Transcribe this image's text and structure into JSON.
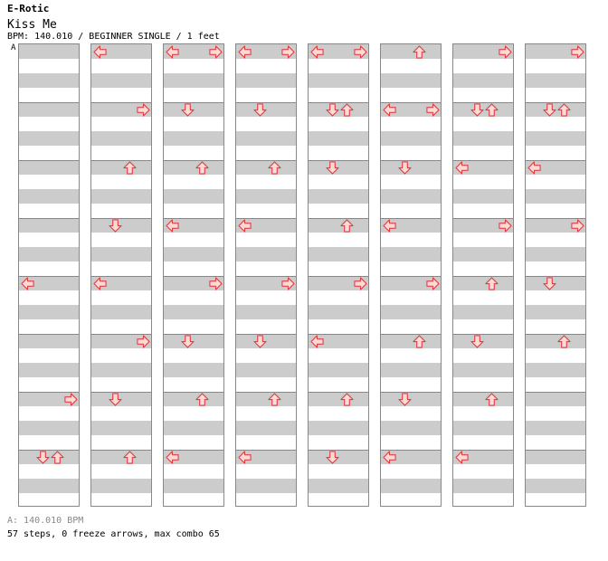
{
  "header": {
    "artist": "E-Rotic",
    "title": "Kiss Me",
    "info": "BPM: 140.010 / BEGINNER SINGLE / 1 feet",
    "marker": "A"
  },
  "footer": {
    "bpm_note": "A: 140.010 BPM",
    "stats": "57 steps, 0 freeze arrows, max combo 65"
  },
  "colors": {
    "arrow_fill": "#ffd8d8",
    "arrow_stroke": "#e04040",
    "band": "#cccccc",
    "border": "#888888"
  },
  "chart": {
    "columns": 8,
    "measures_per_column": 8,
    "lanes": [
      "left",
      "down",
      "up",
      "right"
    ],
    "steps": [
      [
        [
          0,
          "L"
        ]
      ],
      [
        [
          1,
          "R"
        ]
      ],
      [
        [
          2,
          "U"
        ]
      ],
      [
        [
          3,
          "D"
        ]
      ],
      [
        [
          4,
          "L"
        ]
      ],
      [
        [
          5,
          "R"
        ]
      ],
      [
        [
          6,
          "R"
        ]
      ],
      [
        [
          7,
          "D"
        ],
        [
          7,
          "U"
        ]
      ],
      [
        [
          0,
          "L"
        ],
        [
          0,
          "R"
        ]
      ],
      [
        [
          1,
          "D"
        ]
      ],
      [
        [
          2,
          "U"
        ]
      ],
      [
        [
          3,
          "L"
        ]
      ],
      [
        [
          4,
          "L"
        ],
        [
          4,
          "R"
        ]
      ],
      [
        [
          5,
          "D"
        ]
      ],
      [
        [
          6,
          "D"
        ]
      ],
      [
        [
          7,
          "U"
        ]
      ],
      [
        [
          0,
          "L"
        ],
        [
          0,
          "R"
        ]
      ],
      [
        [
          1,
          "D"
        ]
      ],
      [
        [
          2,
          "U"
        ]
      ],
      [
        [
          3,
          "L"
        ]
      ],
      [
        [
          4,
          "R"
        ]
      ],
      [
        [
          5,
          "D"
        ]
      ],
      [
        [
          6,
          "U"
        ]
      ],
      [
        [
          7,
          "L"
        ]
      ],
      [
        [
          0,
          "L"
        ],
        [
          0,
          "R"
        ]
      ],
      [
        [
          1,
          "D"
        ],
        [
          1,
          "U"
        ]
      ],
      [
        [
          2,
          "D"
        ]
      ],
      [
        [
          3,
          "U"
        ]
      ],
      [
        [
          4,
          "R"
        ]
      ],
      [
        [
          5,
          "L"
        ]
      ],
      [
        [
          6,
          "U"
        ]
      ],
      [
        [
          7,
          "D"
        ]
      ],
      [
        [
          0,
          "L"
        ],
        [
          0,
          "R"
        ]
      ],
      [
        [
          1,
          "L"
        ],
        [
          1,
          "R"
        ]
      ],
      [
        [
          2,
          "D"
        ]
      ],
      [
        [
          3,
          "L"
        ]
      ],
      [
        [
          4,
          "R"
        ]
      ],
      [
        [
          5,
          "U"
        ]
      ],
      [
        [
          6,
          "D"
        ]
      ],
      [
        [
          7,
          "L"
        ]
      ],
      [
        [
          0,
          "U"
        ]
      ],
      [
        [
          1,
          "D"
        ],
        [
          1,
          "U"
        ]
      ],
      [
        [
          2,
          "L"
        ]
      ],
      [
        [
          3,
          "R"
        ]
      ],
      [
        [
          4,
          "U"
        ]
      ],
      [
        [
          5,
          "D"
        ]
      ],
      [
        [
          6,
          "R"
        ]
      ],
      [
        [
          7,
          "D"
        ],
        [
          7,
          "U"
        ]
      ],
      [
        [
          0,
          "R"
        ]
      ],
      [
        [
          1,
          "L"
        ]
      ],
      [
        [
          2,
          "R"
        ]
      ],
      [
        [
          3,
          "U"
        ]
      ],
      [
        [
          4,
          "R"
        ]
      ],
      [
        [
          5,
          "U"
        ]
      ],
      [
        [
          6,
          "U"
        ]
      ],
      [
        [
          7,
          "L"
        ]
      ],
      [
        [
          0,
          "U"
        ]
      ],
      [
        [
          1,
          "D"
        ]
      ],
      [
        [
          2,
          "R"
        ]
      ],
      [
        [
          3,
          "U"
        ]
      ],
      [
        [
          4,
          "D"
        ]
      ],
      [
        [
          5,
          "R"
        ]
      ],
      [
        [
          6,
          "D"
        ]
      ],
      [
        [
          7,
          "U"
        ]
      ]
    ],
    "measures": [
      {
        "col": 0,
        "row": 0,
        "notes": []
      },
      {
        "col": 0,
        "row": 1,
        "notes": []
      },
      {
        "col": 0,
        "row": 2,
        "notes": []
      },
      {
        "col": 0,
        "row": 3,
        "notes": []
      },
      {
        "col": 0,
        "row": 4,
        "notes": [
          "L"
        ]
      },
      {
        "col": 0,
        "row": 5,
        "notes": []
      },
      {
        "col": 0,
        "row": 6,
        "notes": [
          "R"
        ]
      },
      {
        "col": 0,
        "row": 7,
        "notes": [
          "D",
          "U"
        ]
      },
      {
        "col": 1,
        "row": 0,
        "notes": [
          "L"
        ]
      },
      {
        "col": 1,
        "row": 1,
        "notes": [
          "R"
        ]
      },
      {
        "col": 1,
        "row": 2,
        "notes": [
          "U"
        ]
      },
      {
        "col": 1,
        "row": 3,
        "notes": [
          "D"
        ]
      },
      {
        "col": 1,
        "row": 4,
        "notes": [
          "L"
        ]
      },
      {
        "col": 1,
        "row": 5,
        "notes": [
          "R"
        ]
      },
      {
        "col": 1,
        "row": 6,
        "notes": [
          "D"
        ]
      },
      {
        "col": 1,
        "row": 7,
        "notes": [
          "U"
        ]
      },
      {
        "col": 2,
        "row": 0,
        "notes": [
          "L",
          "R"
        ]
      },
      {
        "col": 2,
        "row": 1,
        "notes": [
          "D"
        ]
      },
      {
        "col": 2,
        "row": 2,
        "notes": [
          "U"
        ]
      },
      {
        "col": 2,
        "row": 3,
        "notes": [
          "L"
        ]
      },
      {
        "col": 2,
        "row": 4,
        "notes": [
          "R"
        ]
      },
      {
        "col": 2,
        "row": 5,
        "notes": [
          "D"
        ]
      },
      {
        "col": 2,
        "row": 6,
        "notes": [
          "U"
        ]
      },
      {
        "col": 2,
        "row": 7,
        "notes": [
          "L"
        ]
      },
      {
        "col": 3,
        "row": 0,
        "notes": [
          "L",
          "R"
        ]
      },
      {
        "col": 3,
        "row": 1,
        "notes": [
          "D"
        ]
      },
      {
        "col": 3,
        "row": 2,
        "notes": [
          "U"
        ]
      },
      {
        "col": 3,
        "row": 3,
        "notes": [
          "L"
        ]
      },
      {
        "col": 3,
        "row": 4,
        "notes": [
          "R"
        ]
      },
      {
        "col": 3,
        "row": 5,
        "notes": [
          "D"
        ]
      },
      {
        "col": 3,
        "row": 6,
        "notes": [
          "U"
        ]
      },
      {
        "col": 3,
        "row": 7,
        "notes": [
          "L"
        ]
      },
      {
        "col": 4,
        "row": 0,
        "notes": [
          "L",
          "R"
        ]
      },
      {
        "col": 4,
        "row": 1,
        "notes": [
          "D",
          "U"
        ]
      },
      {
        "col": 4,
        "row": 2,
        "notes": [
          "D"
        ]
      },
      {
        "col": 4,
        "row": 3,
        "notes": [
          "U"
        ]
      },
      {
        "col": 4,
        "row": 4,
        "notes": [
          "R"
        ]
      },
      {
        "col": 4,
        "row": 5,
        "notes": [
          "L"
        ]
      },
      {
        "col": 4,
        "row": 6,
        "notes": [
          "U"
        ]
      },
      {
        "col": 4,
        "row": 7,
        "notes": [
          "D"
        ]
      },
      {
        "col": 5,
        "row": 0,
        "notes": [
          "U"
        ]
      },
      {
        "col": 5,
        "row": 1,
        "notes": [
          "L",
          "R"
        ]
      },
      {
        "col": 5,
        "row": 2,
        "notes": [
          "D"
        ]
      },
      {
        "col": 5,
        "row": 3,
        "notes": [
          "L"
        ]
      },
      {
        "col": 5,
        "row": 4,
        "notes": [
          "R"
        ]
      },
      {
        "col": 5,
        "row": 5,
        "notes": [
          "U"
        ]
      },
      {
        "col": 5,
        "row": 6,
        "notes": [
          "D"
        ]
      },
      {
        "col": 5,
        "row": 7,
        "notes": [
          "L"
        ]
      },
      {
        "col": 6,
        "row": 0,
        "notes": [
          "R"
        ]
      },
      {
        "col": 6,
        "row": 1,
        "notes": [
          "D",
          "U"
        ]
      },
      {
        "col": 6,
        "row": 2,
        "notes": [
          "L"
        ]
      },
      {
        "col": 6,
        "row": 3,
        "notes": [
          "R"
        ]
      },
      {
        "col": 6,
        "row": 4,
        "notes": [
          "U"
        ]
      },
      {
        "col": 6,
        "row": 5,
        "notes": [
          "D"
        ]
      },
      {
        "col": 6,
        "row": 6,
        "notes": [
          "U"
        ]
      },
      {
        "col": 6,
        "row": 7,
        "notes": [
          "L"
        ]
      },
      {
        "col": 7,
        "row": 0,
        "notes": [
          "R"
        ]
      },
      {
        "col": 7,
        "row": 1,
        "notes": [
          "D",
          "U"
        ]
      },
      {
        "col": 7,
        "row": 2,
        "notes": [
          "L"
        ]
      },
      {
        "col": 7,
        "row": 3,
        "notes": [
          "R"
        ]
      },
      {
        "col": 7,
        "row": 4,
        "notes": [
          "D"
        ]
      },
      {
        "col": 7,
        "row": 5,
        "notes": [
          "U"
        ]
      },
      {
        "col": 7,
        "row": 6,
        "notes": []
      },
      {
        "col": 7,
        "row": 7,
        "notes": []
      }
    ]
  }
}
